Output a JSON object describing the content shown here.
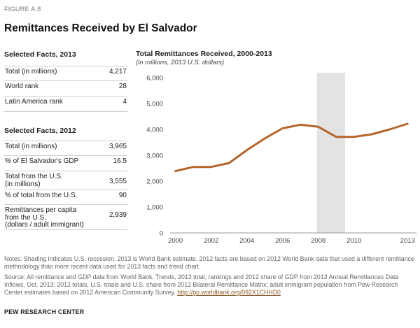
{
  "figure_label": "FIGURE A.8",
  "title": "Remittances Received by El Salvador",
  "facts_2013": {
    "heading": "Selected Facts, 2013",
    "rows": [
      {
        "label": "Total (in millions)",
        "value": "4,217"
      },
      {
        "label": "World rank",
        "value": "28"
      },
      {
        "label": "Latin America rank",
        "value": "4"
      }
    ]
  },
  "facts_2012": {
    "heading": "Selected Facts, 2012",
    "rows": [
      {
        "label": "Total (in millions)",
        "value": "3,965"
      },
      {
        "label": "% of El Salvador's GDP",
        "value": "16.5"
      },
      {
        "label": "Total from the U.S.\n(in millions)",
        "value": "3,555"
      },
      {
        "label": "% of total from the U.S.",
        "value": "90"
      },
      {
        "label": "Remittances per capita\nfrom the U.S.\n(dollars / adult immigrant)",
        "value": "2,939"
      }
    ]
  },
  "chart_data": {
    "type": "line",
    "title": "Total Remittances Received, 2000-2013",
    "subtitle": "(in millions, 2013 U.S. dollars)",
    "x": [
      2000,
      2001,
      2002,
      2003,
      2004,
      2005,
      2006,
      2007,
      2008,
      2009,
      2010,
      2011,
      2012,
      2013
    ],
    "series": [
      {
        "values": [
          2390,
          2550,
          2550,
          2700,
          3200,
          3650,
          4040,
          4180,
          4100,
          3710,
          3710,
          3810,
          4000,
          4217
        ]
      }
    ],
    "x_tick_labels": [
      "2000",
      "2002",
      "2004",
      "2006",
      "2008",
      "2010",
      "2013"
    ],
    "x_tick_values": [
      2000,
      2002,
      2004,
      2006,
      2008,
      2010,
      2013
    ],
    "y_tick_labels": [
      "0",
      "1,000",
      "2,000",
      "3,000",
      "4,000",
      "5,000",
      "6,000"
    ],
    "y_tick_values": [
      0,
      1000,
      2000,
      3000,
      4000,
      5000,
      6000
    ],
    "xlim": [
      1999.7,
      2013.5
    ],
    "ylim": [
      0,
      6000
    ],
    "recession_shading": [
      2007.92,
      2009.5
    ],
    "grid": false,
    "colors": {
      "line": "#b5652c",
      "shading": "#e3e3e3",
      "axis": "#999999"
    }
  },
  "notes": "Notes: Shading indicates U.S. recession. 2013 is World Bank estimate. 2012 facts are based on 2012 World Bank data that used a different remittance methodology than more recent data used for 2013 facts and trend chart.",
  "source_text": "Source: All remittance and GDP data from World Bank. Trends, 2013 total, rankings and 2012 share of GDP from 2013 Annual Remittances Data Inflows, Oct. 2013; 2012 totals, U.S. totals and U.S. share from 2012 Bilateral Remittance Matrix; adult immigrant population from Pew Research Center estimates based on 2012 American Community Survey.",
  "source_link": "http://go.worldbank.org/092X1CHHD0",
  "footer": "PEW RESEARCH CENTER"
}
